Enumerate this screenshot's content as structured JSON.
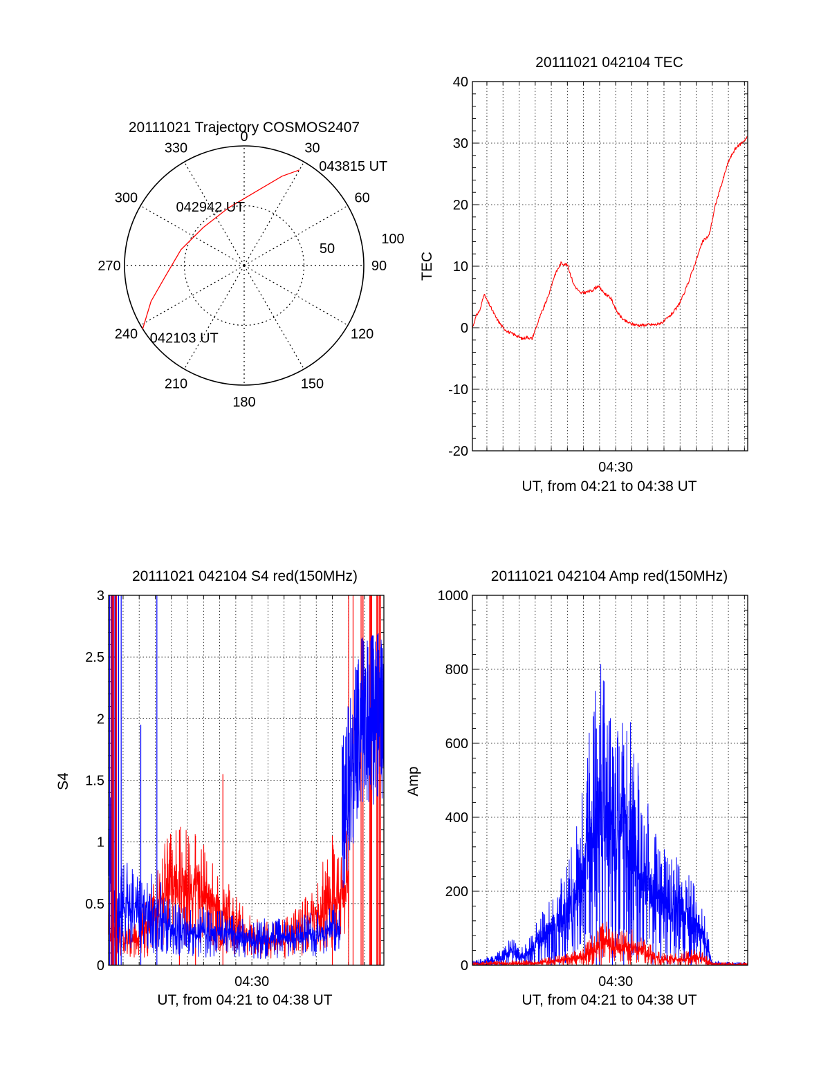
{
  "colors": {
    "red": "#ff0000",
    "blue": "#0000ff",
    "axis": "#000000",
    "grid": "#000000"
  },
  "chart_data": [
    {
      "type": "polar",
      "title": "20111021 Trajectory COSMOS2407",
      "azimuth_labels": [
        "0",
        "30",
        "60",
        "90",
        "120",
        "150",
        "180",
        "210",
        "240",
        "270",
        "300",
        "330"
      ],
      "radial_labels": [
        "50",
        "100"
      ],
      "rings": [
        50,
        100
      ],
      "trajectory": {
        "color": "red",
        "points": [
          {
            "az": 238,
            "zen": 90
          },
          {
            "az": 249,
            "zen": 75
          },
          {
            "az": 262,
            "zen": 60
          },
          {
            "az": 284,
            "zen": 49
          },
          {
            "az": 313,
            "zen": 42
          },
          {
            "az": 345,
            "zen": 45
          },
          {
            "az": 11,
            "zen": 58
          },
          {
            "az": 23,
            "zen": 73
          },
          {
            "az": 30,
            "zen": 83
          }
        ]
      },
      "annotations": [
        {
          "text": "043815 UT",
          "az": 30,
          "zen": 83
        },
        {
          "text": "042942 UT",
          "az": 313,
          "zen": 42
        },
        {
          "text": "042103 UT",
          "az": 238,
          "zen": 90
        }
      ]
    },
    {
      "type": "line",
      "title": "20111021 042104 TEC",
      "ylabel": "TEC",
      "xlabel": "UT, from 04:21 to 04:38 UT",
      "x_tick_labels": [
        {
          "at": 30,
          "label": "04:30"
        }
      ],
      "xlim": [
        21.1,
        38.2
      ],
      "ylim": [
        -20,
        40
      ],
      "yticks": [
        -20,
        -10,
        0,
        10,
        20,
        30,
        40
      ],
      "grid": true,
      "series": [
        {
          "color": "red",
          "x": [
            21.1,
            21.35,
            21.6,
            21.8,
            22.2,
            22.6,
            23.0,
            23.4,
            23.8,
            24.2,
            24.5,
            24.8,
            25.3,
            25.8,
            26.2,
            26.6,
            27.0,
            27.4,
            27.8,
            28.2,
            28.5,
            28.9,
            29.3,
            29.7,
            30.1,
            30.5,
            31.0,
            31.5,
            32.0,
            32.5,
            33.0,
            33.4,
            33.8,
            34.2,
            34.6,
            35.0,
            35.4,
            35.8,
            36.2,
            36.6,
            37.0,
            37.4,
            37.8,
            38.2
          ],
          "y": [
            0,
            2,
            3,
            5.5,
            3.5,
            1.5,
            0,
            -0.8,
            -1.2,
            -1.8,
            -1.5,
            -1.8,
            1.8,
            5,
            8.5,
            10.5,
            10.2,
            7,
            5.6,
            5.8,
            6,
            6.8,
            5.6,
            4.8,
            2.5,
            1.2,
            0.6,
            0.4,
            0.5,
            0.5,
            1,
            2,
            3.2,
            5.2,
            8,
            11,
            14,
            15,
            20,
            23.5,
            27,
            29,
            30,
            31
          ]
        }
      ]
    },
    {
      "type": "line",
      "title": "20111021 042104 S4 red(150MHz)",
      "ylabel": "S4",
      "xlabel": "UT, from 04:21 to 04:38 UT",
      "x_tick_labels": [
        {
          "at": 30,
          "label": "04:30"
        }
      ],
      "xlim": [
        21.1,
        38.2
      ],
      "ylim": [
        0,
        3
      ],
      "yticks": [
        0,
        0.5,
        1,
        1.5,
        2,
        2.5,
        3
      ],
      "ytick_labels": [
        "0",
        "0.5",
        "1",
        "1.5",
        "2",
        "2.5",
        "3"
      ],
      "grid": true,
      "series": [
        {
          "color": "red",
          "x": [
            21.1,
            21.5,
            22.0,
            22.5,
            23.0,
            23.5,
            24.0,
            24.5,
            25.0,
            25.5,
            26.0,
            26.5,
            27.0,
            27.5,
            28.0,
            28.5,
            29.0,
            29.5,
            30.0,
            30.5,
            31.0,
            31.5,
            32.0,
            32.5,
            33.0,
            33.5,
            34.0,
            34.5,
            35.0,
            35.5,
            36.0
          ],
          "y": [
            0.3,
            0.25,
            0.22,
            0.2,
            0.25,
            0.3,
            0.42,
            0.55,
            0.62,
            0.65,
            0.68,
            0.66,
            0.6,
            0.52,
            0.45,
            0.4,
            0.33,
            0.26,
            0.22,
            0.21,
            0.2,
            0.2,
            0.21,
            0.24,
            0.28,
            0.33,
            0.4,
            0.5,
            0.55,
            0.6,
            0.62
          ],
          "spikes": [
            {
              "x": 28.2,
              "y": 1.55
            },
            {
              "x": 25.5,
              "y": 1.1
            },
            {
              "x": 26.5,
              "y": 1.05
            },
            {
              "x": 35.0,
              "y": 1.05
            }
          ]
        },
        {
          "color": "blue",
          "x": [
            21.1,
            21.5,
            22.0,
            22.5,
            23.0,
            23.5,
            24.0,
            24.5,
            25.0,
            25.5,
            26.0,
            26.5,
            27.0,
            27.5,
            28.0,
            28.5,
            29.0,
            29.5,
            30.0,
            30.5,
            31.0,
            31.5,
            32.0,
            32.5,
            33.0,
            33.5,
            34.0,
            34.5,
            35.0,
            35.5
          ],
          "y": [
            0.9,
            0.45,
            0.5,
            0.45,
            0.42,
            0.4,
            0.45,
            0.35,
            0.3,
            0.28,
            0.3,
            0.27,
            0.27,
            0.25,
            0.26,
            0.25,
            0.23,
            0.22,
            0.22,
            0.21,
            0.22,
            0.22,
            0.21,
            0.22,
            0.23,
            0.24,
            0.25,
            0.26,
            0.28,
            0.3
          ],
          "spikes": [
            {
              "x": 23.1,
              "y": 1.95
            },
            {
              "x": 24.1,
              "y": 3.0
            },
            {
              "x": 21.5,
              "y": 3.0
            }
          ]
        }
      ]
    },
    {
      "type": "line",
      "title": "20111021 042104 Amp red(150MHz)",
      "ylabel": "Amp",
      "xlabel": "UT, from 04:21 to 04:38 UT",
      "x_tick_labels": [
        {
          "at": 30,
          "label": "04:30"
        }
      ],
      "xlim": [
        21.1,
        38.2
      ],
      "ylim": [
        0,
        1000
      ],
      "yticks": [
        0,
        200,
        400,
        600,
        800,
        1000
      ],
      "grid": true,
      "series": [
        {
          "color": "blue",
          "x": [
            21.1,
            22.0,
            23.0,
            23.5,
            24.0,
            24.5,
            25.0,
            25.5,
            26.0,
            26.5,
            27.0,
            27.5,
            28.0,
            28.5,
            29.0,
            29.5,
            30.0,
            30.5,
            31.0,
            31.5,
            32.0,
            32.5,
            33.0,
            33.5,
            34.0,
            34.5,
            35.0,
            35.5,
            36.0,
            37.0,
            38.2
          ],
          "y": [
            5,
            10,
            20,
            40,
            20,
            30,
            60,
            80,
            100,
            120,
            140,
            180,
            250,
            350,
            420,
            360,
            300,
            380,
            330,
            260,
            220,
            180,
            170,
            150,
            160,
            130,
            100,
            70,
            5,
            3,
            3
          ],
          "spikes": [
            {
              "x": 29.0,
              "y": 650
            },
            {
              "x": 29.8,
              "y": 590
            },
            {
              "x": 30.5,
              "y": 595
            },
            {
              "x": 28.8,
              "y": 640
            }
          ]
        },
        {
          "color": "red",
          "x": [
            21.1,
            22.0,
            23.0,
            24.0,
            25.0,
            26.0,
            27.0,
            28.0,
            28.5,
            29.0,
            29.5,
            30.0,
            30.5,
            31.0,
            31.5,
            32.0,
            32.5,
            33.0,
            33.5,
            34.0,
            34.5,
            35.0,
            35.5,
            36.0,
            38.2
          ],
          "y": [
            3,
            4,
            5,
            5,
            6,
            10,
            15,
            25,
            40,
            55,
            60,
            50,
            45,
            50,
            40,
            30,
            20,
            15,
            15,
            15,
            20,
            20,
            15,
            3,
            2
          ]
        }
      ]
    }
  ]
}
